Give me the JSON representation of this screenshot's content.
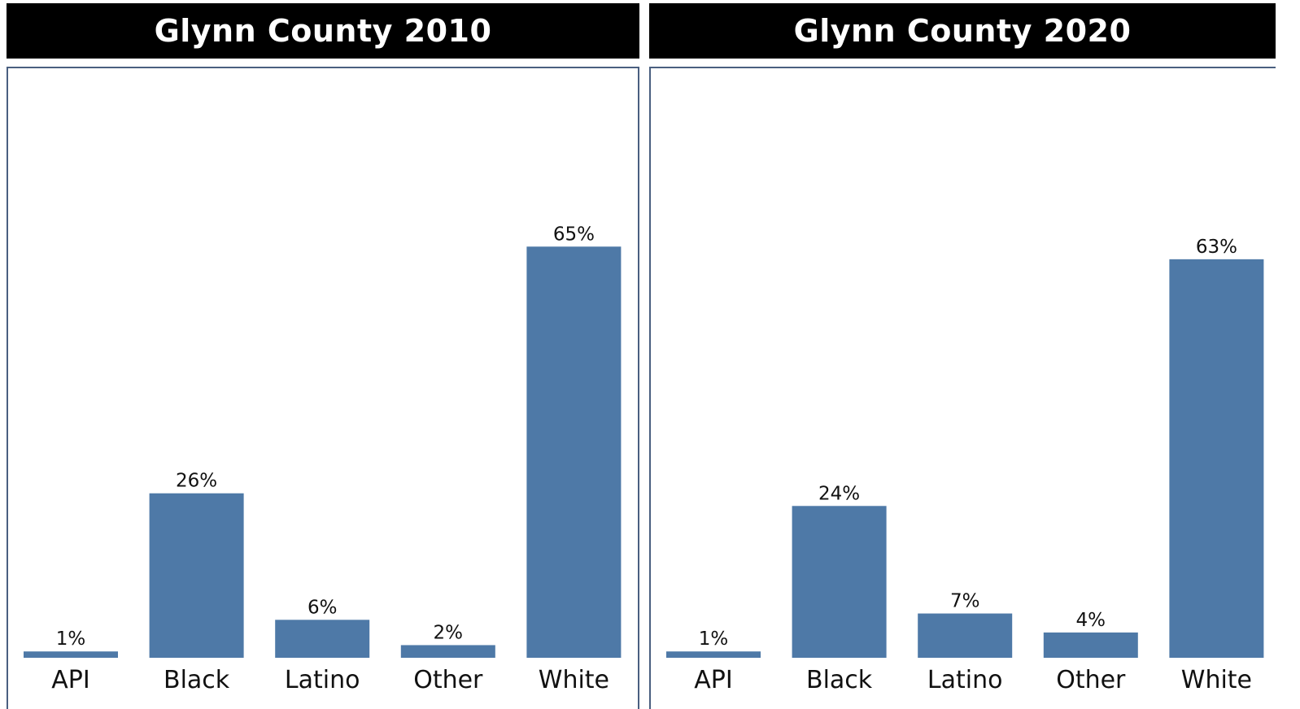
{
  "colors": {
    "bar": "#4e79a7",
    "header_bg": "#000000",
    "header_text": "#ffffff",
    "frame": "#4a5f80"
  },
  "chart_data": [
    {
      "type": "bar",
      "title": "Glynn County 2010",
      "categories": [
        "API",
        "Black",
        "Latino",
        "Other",
        "White"
      ],
      "values": [
        1,
        26,
        6,
        2,
        65
      ],
      "value_labels": [
        "1%",
        "26%",
        "6%",
        "2%",
        "65%"
      ],
      "ylim": [
        0,
        100
      ],
      "grid": false,
      "legend": "none"
    },
    {
      "type": "bar",
      "title": "Glynn County 2020",
      "categories": [
        "API",
        "Black",
        "Latino",
        "Other",
        "White"
      ],
      "values": [
        1,
        24,
        7,
        4,
        63
      ],
      "value_labels": [
        "1%",
        "24%",
        "7%",
        "4%",
        "63%"
      ],
      "ylim": [
        0,
        100
      ],
      "grid": false,
      "legend": "none"
    }
  ]
}
